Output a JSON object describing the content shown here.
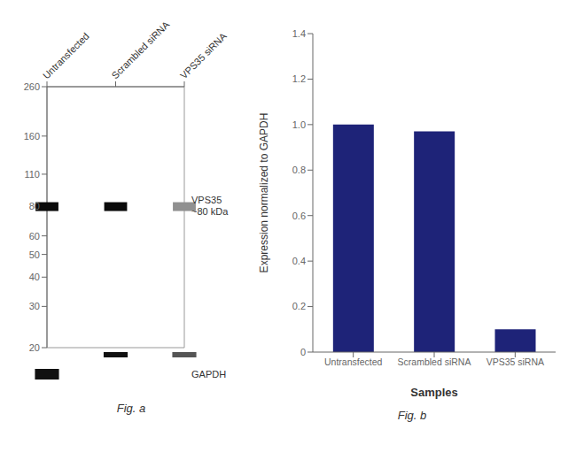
{
  "chart_data": [
    {
      "type": "blot",
      "title": "Fig. a",
      "categories": [
        "Untransfected",
        "Scrambled siRNA",
        "VPS35 siRNA"
      ],
      "log": "y",
      "ylim": [
        20,
        260
      ],
      "yticks": [
        260,
        160,
        110,
        80,
        60,
        50,
        40,
        30,
        20
      ],
      "series": [
        {
          "name": "VPS35\n~80 kDa",
          "values": [
            80,
            80,
            80
          ],
          "colors": [
            "#0a0a0a",
            "#0a0a0a",
            "#909090"
          ]
        },
        {
          "name": "GAPDH",
          "colors": [
            "#111111",
            "#111111",
            "#555555"
          ]
        }
      ]
    },
    {
      "type": "bar",
      "title": "Fig. b",
      "categories": [
        "Untransfected",
        "Scrambled siRNA",
        "VPS35 siRNA"
      ],
      "values": [
        1.0,
        0.97,
        0.1
      ],
      "color": "#1e2378",
      "ylim": [
        0,
        1.4
      ],
      "yticks": [
        0,
        0.2,
        0.4,
        0.6,
        0.8,
        {
          "value": 1.0,
          "label": "1.0"
        },
        1.2,
        1.4
      ],
      "xlabel": "Samples",
      "ylabel": "Expression normalized to GAPDH",
      "grid": false
    }
  ]
}
